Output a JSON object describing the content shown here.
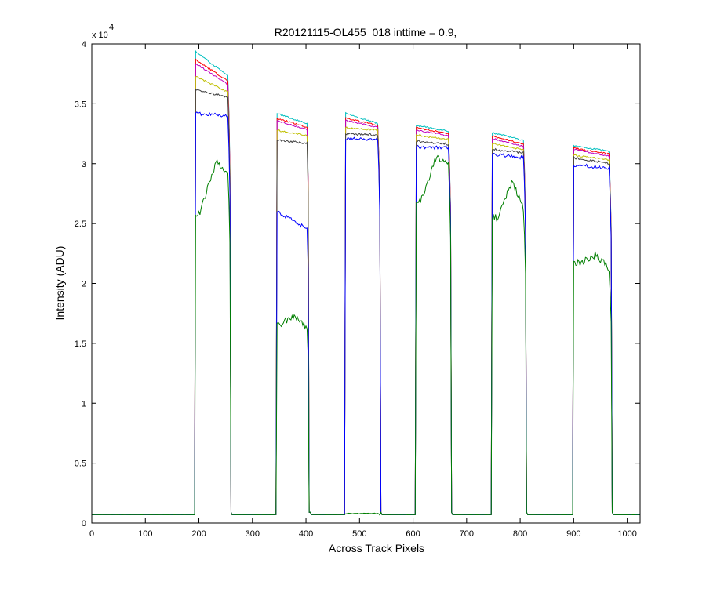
{
  "chart_data": {
    "type": "line",
    "title": "R20121115-OL455_018 inttime = 0.9,",
    "xlabel": "Across Track Pixels",
    "ylabel": "Intensity (ADU)",
    "xlim": [
      0,
      1024
    ],
    "ylim": [
      0,
      40000
    ],
    "xticks": [
      0,
      100,
      200,
      300,
      400,
      500,
      600,
      700,
      800,
      900,
      1000
    ],
    "xtick_labels": [
      "0",
      "100",
      "200",
      "300",
      "400",
      "500",
      "600",
      "700",
      "800",
      "900",
      "1000"
    ],
    "yticks": [
      0,
      5000,
      10000,
      15000,
      20000,
      25000,
      30000,
      35000,
      40000
    ],
    "ytick_labels": [
      "0",
      "0.5",
      "1",
      "1.5",
      "2",
      "2.5",
      "3",
      "3.5",
      "4"
    ],
    "y_exponent_prefix": "x 10",
    "y_exponent_power": "4",
    "grid": false,
    "legend": "none",
    "baseline": 700,
    "bands": [
      {
        "start": 193,
        "end": 258
      },
      {
        "start": 346,
        "end": 405
      },
      {
        "start": 474,
        "end": 538
      },
      {
        "start": 605,
        "end": 670
      },
      {
        "start": 748,
        "end": 810
      },
      {
        "start": 900,
        "end": 970
      }
    ],
    "series": [
      {
        "color": "#00bfbf",
        "band_start": [
          39400,
          34200,
          34200,
          33200,
          32600,
          31500
        ],
        "band_end": [
          37200,
          33300,
          33300,
          32700,
          31900,
          31000
        ],
        "noise": 60
      },
      {
        "color": "#ff0000",
        "band_start": [
          38700,
          33800,
          33800,
          33000,
          32300,
          31300
        ],
        "band_end": [
          36800,
          33000,
          33200,
          32500,
          31600,
          30800
        ],
        "noise": 60
      },
      {
        "color": "#bf00bf",
        "band_start": [
          38400,
          33600,
          33600,
          32800,
          32100,
          31200
        ],
        "band_end": [
          36500,
          32800,
          33000,
          32300,
          31400,
          30600
        ],
        "noise": 60
      },
      {
        "color": "#bfbf00",
        "band_start": [
          37300,
          32800,
          33000,
          32400,
          31700,
          30700
        ],
        "band_end": [
          35900,
          32300,
          32800,
          32000,
          31100,
          30300
        ],
        "noise": 70
      },
      {
        "color": "#404040",
        "band_start": [
          36200,
          32000,
          32500,
          31900,
          31200,
          30500
        ],
        "band_end": [
          35500,
          31700,
          32400,
          31600,
          30900,
          30000
        ],
        "noise": 90
      },
      {
        "color": "#0000ff",
        "band_start": [
          34200,
          26000,
          32100,
          31400,
          30800,
          29900
        ],
        "band_end": [
          34000,
          24500,
          32000,
          31300,
          30500,
          29600
        ],
        "noise": 150
      },
      {
        "color": "#007f00",
        "band_start": [
          25500,
          16800,
          800,
          26500,
          25500,
          21800
        ],
        "band_end": [
          28500,
          16000,
          800,
          29500,
          25500,
          20800
        ],
        "peak": [
          30000,
          17300,
          800,
          30500,
          28500,
          22500
        ],
        "noise": 300
      }
    ]
  }
}
